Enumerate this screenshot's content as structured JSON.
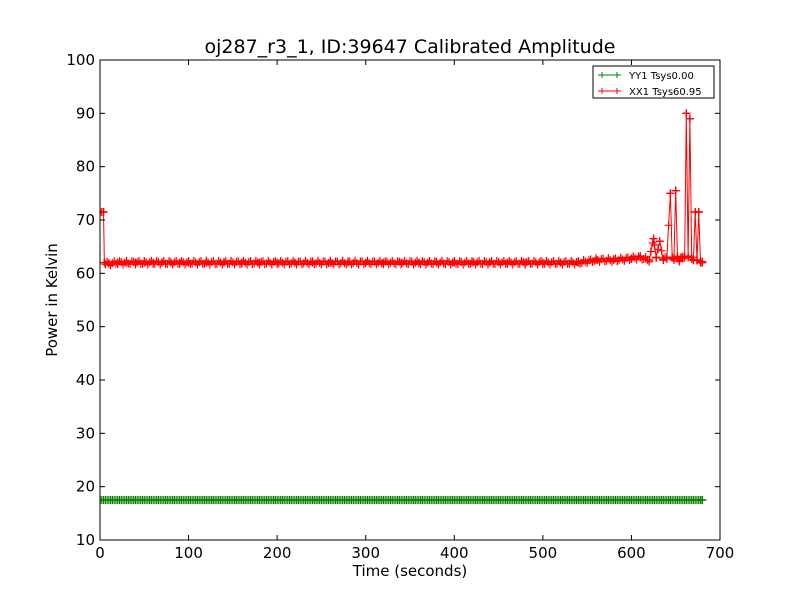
{
  "chart_data": {
    "type": "line",
    "title": "oj287_r3_1, ID:39647 Calibrated Amplitude",
    "xlabel": "Time (seconds)",
    "ylabel": "Power in Kelvin",
    "xlim": [
      0,
      700
    ],
    "ylim": [
      10,
      100
    ],
    "xticks": [
      "0",
      "100",
      "200",
      "300",
      "400",
      "500",
      "600",
      "700"
    ],
    "yticks": [
      "10",
      "20",
      "30",
      "40",
      "50",
      "60",
      "70",
      "80",
      "90",
      "100"
    ],
    "grid": false,
    "legend_position": "top-right",
    "series": [
      {
        "name": "YY1 Tsys0.00",
        "color": "#008000",
        "marker": "+",
        "x": [
          0,
          680
        ],
        "y": [
          17.5,
          17.5
        ]
      },
      {
        "name": "XX1 Tsys60.95",
        "color": "#ff0000",
        "marker": "+",
        "x": [
          0,
          4,
          5,
          10,
          20,
          30,
          40,
          50,
          60,
          70,
          80,
          90,
          100,
          120,
          140,
          160,
          180,
          200,
          220,
          240,
          260,
          280,
          300,
          320,
          340,
          360,
          380,
          400,
          420,
          440,
          460,
          480,
          500,
          520,
          540,
          560,
          580,
          600,
          610,
          620,
          625,
          628,
          632,
          636,
          640,
          644,
          646,
          648,
          650,
          652,
          654,
          656,
          658,
          660,
          662,
          664,
          666,
          668,
          670,
          672,
          674,
          676,
          678,
          680
        ],
        "y": [
          71.5,
          71.5,
          62.0,
          61.8,
          62.0,
          62.0,
          62.0,
          62.0,
          62.0,
          62.0,
          62.0,
          62.0,
          62.0,
          62.0,
          62.0,
          62.0,
          62.0,
          62.0,
          62.0,
          62.0,
          62.0,
          62.0,
          62.0,
          62.0,
          62.0,
          62.0,
          62.0,
          62.0,
          62.0,
          62.0,
          62.0,
          62.0,
          62.0,
          62.0,
          62.0,
          62.5,
          62.5,
          62.8,
          63.0,
          62.5,
          66.5,
          63.0,
          66.0,
          62.5,
          63.0,
          75.0,
          63.0,
          62.8,
          75.5,
          63.0,
          62.5,
          63.0,
          62.8,
          63.0,
          90.0,
          63.0,
          89.0,
          63.0,
          62.5,
          71.5,
          62.5,
          71.5,
          62.0,
          62.0
        ]
      }
    ]
  }
}
